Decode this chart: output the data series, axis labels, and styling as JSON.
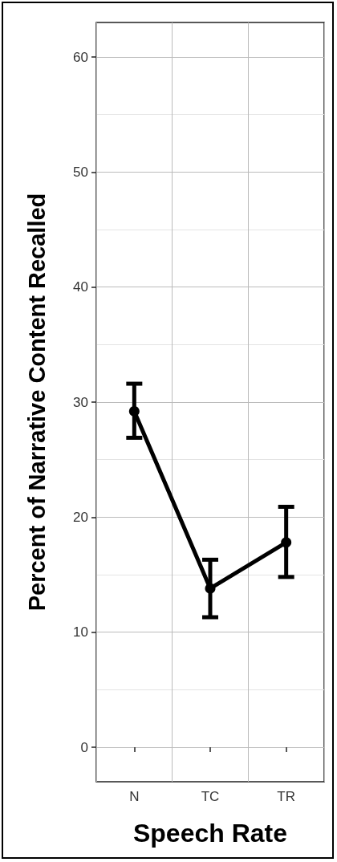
{
  "chart_data": {
    "type": "line",
    "xlabel": "Speech Rate",
    "ylabel": "Percent of Narrative Content Recalled",
    "categories": [
      "N",
      "TC",
      "TR"
    ],
    "series": [
      {
        "color": "#000000",
        "values": [
          29.2,
          13.8,
          17.8
        ],
        "errors": [
          [
            26.9,
            31.6
          ],
          [
            11.3,
            16.3
          ],
          [
            14.8,
            20.9
          ]
        ]
      }
    ],
    "ylim": [
      -3,
      63
    ],
    "yticks": [
      0,
      10,
      20,
      30,
      40,
      50,
      60
    ],
    "grid": true,
    "marker": "circle",
    "line_style": "solid"
  }
}
